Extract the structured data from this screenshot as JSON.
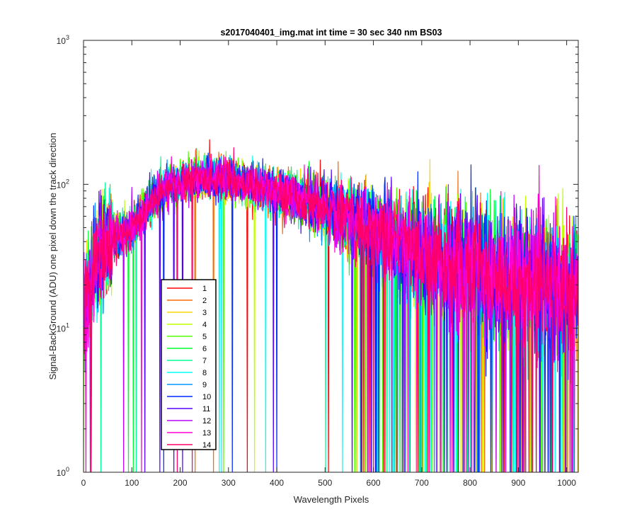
{
  "chart_data": {
    "type": "line",
    "title": "s2017040401_img.mat int time = 30 sec  340 nm BS03",
    "xlabel": "Wavelength Pixels",
    "ylabel": "Signal-BackGround (ADU) one pixel down the track direction",
    "xlim": [
      0,
      1024
    ],
    "ylim": [
      1,
      1000
    ],
    "yscale": "log",
    "xticks": [
      "0",
      "100",
      "200",
      "300",
      "400",
      "500",
      "600",
      "700",
      "800",
      "900",
      "1000"
    ],
    "yticks": [
      {
        "base": "10",
        "exp": "0"
      },
      {
        "base": "10",
        "exp": "1"
      },
      {
        "base": "10",
        "exp": "2"
      },
      {
        "base": "10",
        "exp": "3"
      }
    ],
    "grid": false,
    "legend_position": "lower-left",
    "envelope": {
      "x": [
        0,
        10,
        20,
        30,
        40,
        50,
        60,
        80,
        100,
        120,
        140,
        160,
        180,
        200,
        220,
        240,
        260,
        280,
        300,
        320,
        340,
        360,
        380,
        400,
        420,
        440,
        460,
        480,
        500,
        520,
        540,
        560,
        580,
        600,
        620,
        640,
        660,
        680,
        700,
        720,
        740,
        760,
        780,
        800,
        820,
        840,
        860,
        880,
        900,
        920,
        940,
        960,
        980,
        1000,
        1024
      ],
      "y": [
        12,
        18,
        25,
        30,
        36,
        40,
        43,
        45,
        48,
        60,
        75,
        88,
        98,
        104,
        108,
        110,
        111,
        110,
        108,
        104,
        100,
        96,
        92,
        88,
        84,
        80,
        76,
        72,
        68,
        64,
        60,
        56,
        52,
        48,
        45,
        42,
        39,
        36,
        34,
        32,
        30,
        28,
        27,
        26,
        25,
        24,
        23,
        22,
        22,
        21,
        20,
        20,
        19,
        19,
        18
      ]
    },
    "series": [
      {
        "name": "1",
        "color": "#ff0000"
      },
      {
        "name": "2",
        "color": "#ff6a00"
      },
      {
        "name": "3",
        "color": "#ffd500"
      },
      {
        "name": "4",
        "color": "#c0ff00"
      },
      {
        "name": "5",
        "color": "#55ff00"
      },
      {
        "name": "6",
        "color": "#00ff2a"
      },
      {
        "name": "7",
        "color": "#00ff95"
      },
      {
        "name": "8",
        "color": "#00ffff"
      },
      {
        "name": "9",
        "color": "#0095ff"
      },
      {
        "name": "10",
        "color": "#002aff"
      },
      {
        "name": "11",
        "color": "#5500ff"
      },
      {
        "name": "12",
        "color": "#c000ff"
      },
      {
        "name": "13",
        "color": "#ff00d5"
      },
      {
        "name": "14",
        "color": "#ff006a"
      }
    ]
  }
}
